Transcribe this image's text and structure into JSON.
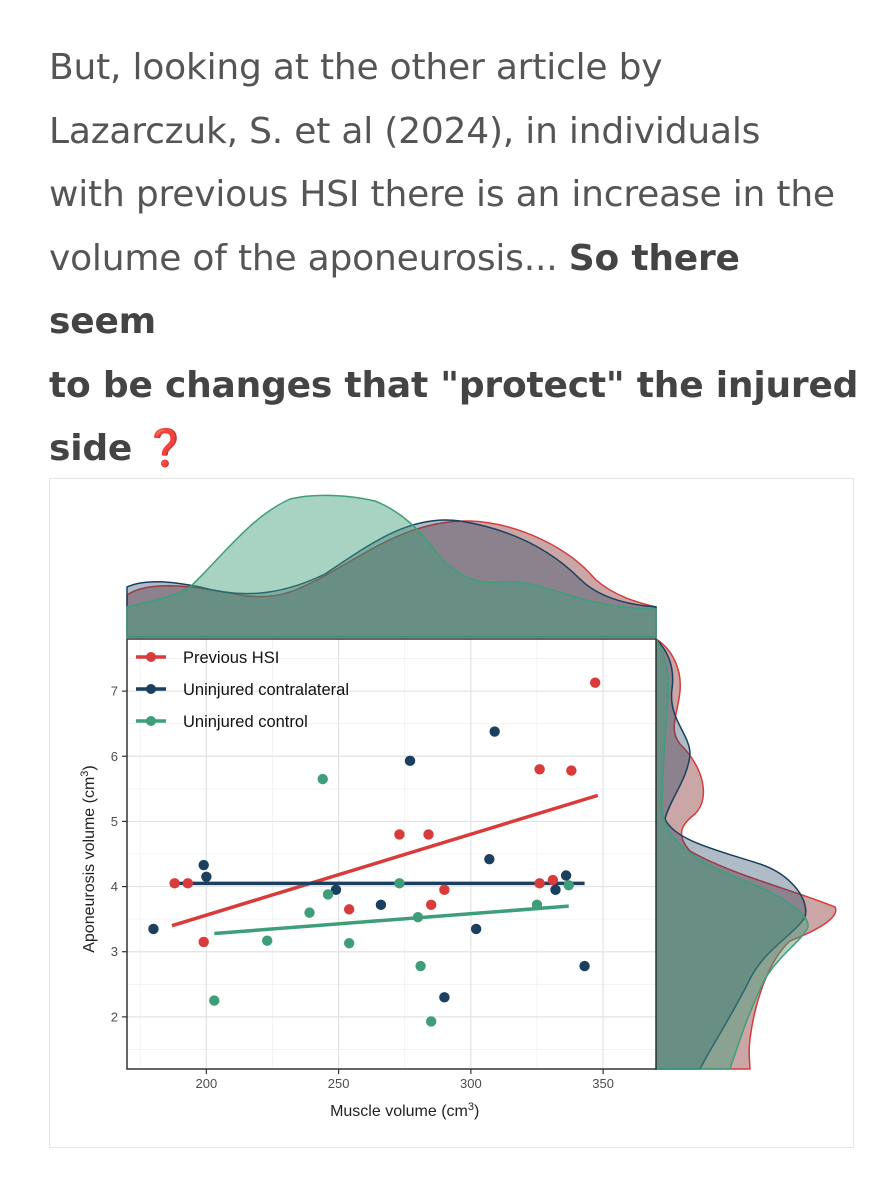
{
  "post": {
    "line1": "But, looking at the other article by",
    "line2": "Lazarczuk, S. et al (2024), in individuals",
    "line3": "with previous HSI there is an increase in the",
    "line4_normal": "volume of the aponeurosis...",
    "line4_bold": "So there seem",
    "line5_bold": "to be changes that \"protect\" the injured",
    "line6_bold": "side",
    "emoji": "❓"
  },
  "chart_data": {
    "type": "scatter",
    "xlabel": "Muscle volume (cm",
    "xlabel_sup": "3",
    "xlabel_end": ")",
    "ylabel": "Aponeurosis volume (cm",
    "ylabel_sup": "3",
    "ylabel_end": ")",
    "xlim": [
      170,
      370
    ],
    "ylim": [
      1.2,
      7.8
    ],
    "xticks": [
      200,
      250,
      300,
      350
    ],
    "yticks": [
      2,
      3,
      4,
      5,
      6,
      7
    ],
    "legend_position": "top-left",
    "series": [
      {
        "name": "Previous HSI",
        "color": "#d93a3a",
        "points": [
          [
            188,
            4.05
          ],
          [
            193,
            4.05
          ],
          [
            199,
            3.15
          ],
          [
            254,
            3.65
          ],
          [
            273,
            4.8
          ],
          [
            284,
            4.8
          ],
          [
            285,
            3.72
          ],
          [
            290,
            3.95
          ],
          [
            326,
            5.8
          ],
          [
            326,
            4.05
          ],
          [
            331,
            4.1
          ],
          [
            338,
            5.78
          ],
          [
            347,
            7.13
          ]
        ],
        "fit": [
          [
            187,
            3.4
          ],
          [
            348,
            5.4
          ]
        ]
      },
      {
        "name": "Uninjured contralateral",
        "color": "#1b3f5e",
        "points": [
          [
            180,
            3.35
          ],
          [
            199,
            4.33
          ],
          [
            200,
            4.15
          ],
          [
            249,
            3.95
          ],
          [
            266,
            3.72
          ],
          [
            277,
            5.93
          ],
          [
            290,
            2.3
          ],
          [
            302,
            3.35
          ],
          [
            307,
            4.42
          ],
          [
            309,
            6.38
          ],
          [
            332,
            3.95
          ],
          [
            336,
            4.17
          ],
          [
            343,
            2.78
          ]
        ],
        "fit": [
          [
            187,
            4.05
          ],
          [
            343,
            4.05
          ]
        ]
      },
      {
        "name": "Uninjured control",
        "color": "#3e9e7a",
        "points": [
          [
            203,
            2.25
          ],
          [
            223,
            3.17
          ],
          [
            239,
            3.6
          ],
          [
            244,
            5.65
          ],
          [
            246,
            3.88
          ],
          [
            254,
            3.13
          ],
          [
            273,
            4.05
          ],
          [
            280,
            3.53
          ],
          [
            281,
            2.78
          ],
          [
            285,
            1.93
          ],
          [
            325,
            3.72
          ],
          [
            337,
            4.02
          ]
        ],
        "fit": [
          [
            203,
            3.28
          ],
          [
            337,
            3.7
          ]
        ]
      }
    ]
  }
}
